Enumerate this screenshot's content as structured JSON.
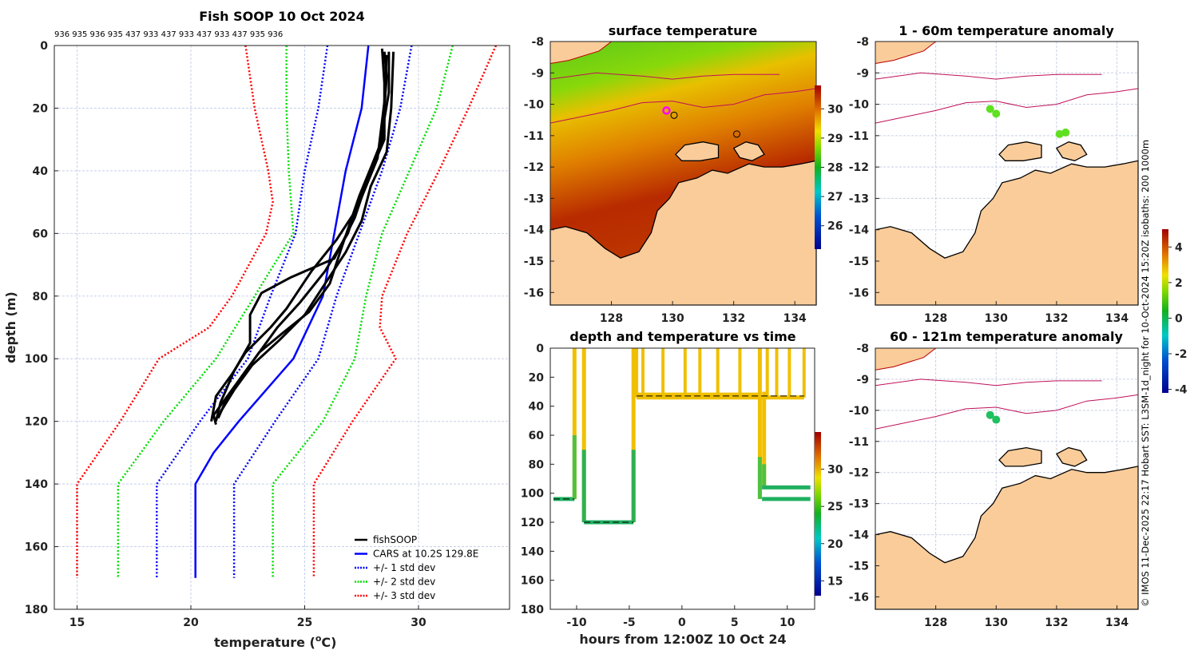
{
  "chart_data": [
    {
      "type": "line",
      "title": "Fish SOOP 10 Oct 2024",
      "top_labels": "936 935 936 935 437 933 437 933 437 933 437 935 936",
      "xlabel": "temperature (",
      "xlabel_sup": "o",
      "xlabel_end": "C)",
      "ylabel": "depth (m)",
      "xlim": [
        14,
        34
      ],
      "ylim": [
        0,
        180
      ],
      "y_inverted": true,
      "xticks": [
        15,
        20,
        25,
        30
      ],
      "yticks": [
        0,
        20,
        40,
        60,
        80,
        100,
        120,
        140,
        160,
        180
      ],
      "grid": true,
      "legend_position": "bottom-right",
      "legend": [
        "fishSOOP",
        "CARS at 10.2S 129.8E",
        "+/- 1 std dev",
        "+/- 2 std dev",
        "+/- 3 std dev"
      ],
      "series": [
        {
          "name": "CARS at 10.2S 129.8E",
          "color": "#0000ff",
          "style": "solid",
          "points": [
            [
              27.8,
              0
            ],
            [
              27.5,
              20
            ],
            [
              26.8,
              40
            ],
            [
              26.3,
              60
            ],
            [
              25.8,
              80
            ],
            [
              24.5,
              100
            ],
            [
              22.1,
              120
            ],
            [
              21.0,
              130
            ],
            [
              20.2,
              140
            ],
            [
              20.2,
              170
            ]
          ]
        },
        {
          "name": "-1 std",
          "color": "#0000ff",
          "style": "dotted",
          "points": [
            [
              26.0,
              0
            ],
            [
              25.6,
              20
            ],
            [
              25.0,
              40
            ],
            [
              24.6,
              60
            ],
            [
              23.5,
              80
            ],
            [
              22.5,
              100
            ],
            [
              20.4,
              120
            ],
            [
              18.5,
              140
            ],
            [
              18.5,
              170
            ]
          ]
        },
        {
          "name": "+1 std",
          "color": "#0000ff",
          "style": "dotted",
          "points": [
            [
              29.7,
              0
            ],
            [
              29.2,
              20
            ],
            [
              28.4,
              40
            ],
            [
              27.4,
              60
            ],
            [
              26.4,
              80
            ],
            [
              25.6,
              100
            ],
            [
              23.7,
              120
            ],
            [
              21.9,
              140
            ],
            [
              21.9,
              170
            ]
          ]
        },
        {
          "name": "-2 std",
          "color": "#00dd00",
          "style": "dotted",
          "points": [
            [
              24.2,
              0
            ],
            [
              24.2,
              20
            ],
            [
              24.3,
              40
            ],
            [
              24.5,
              60
            ],
            [
              22.8,
              80
            ],
            [
              21.1,
              100
            ],
            [
              18.8,
              120
            ],
            [
              16.8,
              140
            ],
            [
              16.8,
              170
            ]
          ]
        },
        {
          "name": "+2 std",
          "color": "#00dd00",
          "style": "dotted",
          "points": [
            [
              31.5,
              0
            ],
            [
              30.8,
              20
            ],
            [
              29.6,
              40
            ],
            [
              28.4,
              60
            ],
            [
              27.7,
              80
            ],
            [
              27.2,
              100
            ],
            [
              25.8,
              120
            ],
            [
              23.6,
              140
            ],
            [
              23.6,
              170
            ]
          ]
        },
        {
          "name": "-3 std",
          "color": "#ff0000",
          "style": "dotted",
          "points": [
            [
              22.4,
              0
            ],
            [
              22.8,
              20
            ],
            [
              23.4,
              40
            ],
            [
              23.6,
              50
            ],
            [
              23.3,
              60
            ],
            [
              21.8,
              80
            ],
            [
              20.8,
              90
            ],
            [
              18.6,
              100
            ],
            [
              16.9,
              120
            ],
            [
              15.0,
              140
            ],
            [
              15.0,
              170
            ]
          ]
        },
        {
          "name": "+3 std",
          "color": "#ff0000",
          "style": "dotted",
          "points": [
            [
              33.4,
              0
            ],
            [
              32.2,
              20
            ],
            [
              30.9,
              40
            ],
            [
              29.5,
              60
            ],
            [
              28.4,
              80
            ],
            [
              28.3,
              90
            ],
            [
              29.0,
              100
            ],
            [
              27.1,
              120
            ],
            [
              25.4,
              140
            ],
            [
              25.4,
              170
            ]
          ]
        },
        {
          "name": "fishSOOP",
          "color": "#000000",
          "style": "solid",
          "points": [
            [
              28.5,
              2
            ],
            [
              28.6,
              10
            ],
            [
              28.4,
              30
            ],
            [
              27.6,
              45
            ],
            [
              26.9,
              60
            ],
            [
              25.9,
              72
            ],
            [
              24.8,
              82
            ],
            [
              23.8,
              90
            ],
            [
              22.8,
              100
            ],
            [
              21.6,
              112
            ],
            [
              21.0,
              118
            ],
            [
              21.1,
              121
            ]
          ]
        },
        {
          "name": "fishSOOP",
          "color": "#000000",
          "style": "solid",
          "points": [
            [
              28.4,
              1
            ],
            [
              28.5,
              12
            ],
            [
              28.5,
              30
            ],
            [
              27.8,
              42
            ],
            [
              27.2,
              55
            ],
            [
              26.3,
              68
            ],
            [
              24.4,
              74
            ],
            [
              23.1,
              79
            ],
            [
              22.6,
              86
            ],
            [
              22.6,
              95
            ],
            [
              21.9,
              104
            ],
            [
              21.3,
              114
            ],
            [
              21.1,
              120
            ]
          ]
        },
        {
          "name": "fishSOOP",
          "color": "#000000",
          "style": "solid",
          "points": [
            [
              28.7,
              2
            ],
            [
              28.7,
              15
            ],
            [
              28.3,
              32
            ],
            [
              27.4,
              48
            ],
            [
              26.6,
              65
            ],
            [
              26.1,
              76
            ],
            [
              25.2,
              85
            ],
            [
              24.0,
              92
            ],
            [
              23.0,
              98
            ],
            [
              22.2,
              106
            ],
            [
              21.5,
              114
            ],
            [
              21.2,
              119
            ]
          ]
        },
        {
          "name": "fishSOOP",
          "color": "#000000",
          "style": "solid",
          "points": [
            [
              28.9,
              2
            ],
            [
              28.8,
              20
            ],
            [
              28.6,
              34
            ],
            [
              27.9,
              45
            ],
            [
              27.5,
              56
            ],
            [
              26.8,
              66
            ],
            [
              25.9,
              76
            ],
            [
              25.0,
              86
            ],
            [
              23.9,
              94
            ],
            [
              22.7,
              102
            ],
            [
              21.9,
              110
            ],
            [
              21.3,
              117
            ]
          ]
        },
        {
          "name": "fishSOOP",
          "color": "#000000",
          "style": "solid",
          "points": [
            [
              28.6,
              3
            ],
            [
              28.5,
              18
            ],
            [
              28.2,
              36
            ],
            [
              27.3,
              52
            ],
            [
              26.4,
              62
            ],
            [
              25.3,
              72
            ],
            [
              24.2,
              84
            ],
            [
              23.5,
              90
            ],
            [
              22.4,
              98
            ],
            [
              21.8,
              105
            ],
            [
              21.1,
              112
            ],
            [
              20.9,
              120
            ]
          ]
        }
      ]
    },
    {
      "type": "heatmap",
      "title": "surface temperature",
      "xticks": [
        128,
        130,
        132,
        134
      ],
      "yticks": [
        -8,
        -9,
        -10,
        -11,
        -12,
        -13,
        -14,
        -15,
        -16
      ],
      "xlim": [
        126,
        134.7
      ],
      "ylim": [
        -16.4,
        -8
      ],
      "colorbar": {
        "ticks": [
          26,
          27,
          28,
          29,
          30
        ],
        "range": [
          25.2,
          30.8
        ]
      },
      "markers": [
        [
          129.8,
          -10.2
        ]
      ]
    },
    {
      "type": "scatter",
      "title": "depth and temperature vs time",
      "xlabel": "hours from 12:00Z 10 Oct 24",
      "xticks": [
        -10,
        -5,
        0,
        5,
        10
      ],
      "yticks": [
        0,
        20,
        40,
        60,
        80,
        100,
        120,
        140,
        160,
        180
      ],
      "xlim": [
        -12.5,
        12.6
      ],
      "ylim": [
        0,
        180
      ],
      "colorbar": {
        "ticks": [
          15,
          20,
          25,
          30
        ],
        "range": [
          13,
          35
        ]
      }
    },
    {
      "type": "heatmap",
      "title": "1 - 60m temperature anomaly",
      "xticks": [
        128,
        130,
        132,
        134
      ],
      "yticks": [
        -8,
        -9,
        -10,
        -11,
        -12,
        -13,
        -14,
        -15,
        -16
      ],
      "xlim": [
        126,
        134.7
      ],
      "ylim": [
        -16.4,
        -8
      ]
    },
    {
      "type": "heatmap",
      "title": "60 - 121m temperature anomaly",
      "xticks": [
        128,
        130,
        132,
        134
      ],
      "yticks": [
        -8,
        -9,
        -10,
        -11,
        -12,
        -13,
        -14,
        -15,
        -16
      ],
      "xlim": [
        126,
        134.7
      ],
      "ylim": [
        -16.4,
        -8
      ],
      "colorbar": {
        "ticks": [
          4,
          2,
          0,
          -2,
          -4
        ],
        "range": [
          -4.2,
          5
        ]
      }
    }
  ],
  "credit": "© IMOS 11-Dec-2025 22:17 Hobart SST: L3SM-1d_night for 10-Oct-2024 15:20Z isobaths: 200  1000m"
}
